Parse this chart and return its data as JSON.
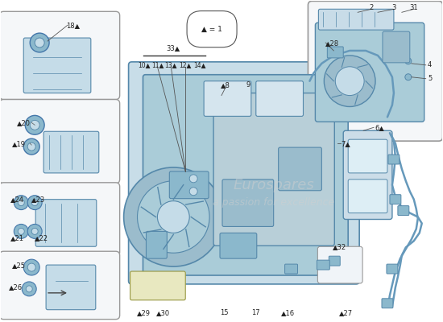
{
  "bg_color": "#ffffff",
  "box_fill": "#f5f7f9",
  "box_edge": "#999999",
  "part_blue": "#8bb8cc",
  "part_blue_dark": "#5588aa",
  "part_blue_light": "#c5dce8",
  "part_outline": "#4477aa",
  "wire_color": "#6699bb",
  "text_color": "#222222",
  "label_fs": 6.0,
  "watermark_color": "#dddddd"
}
